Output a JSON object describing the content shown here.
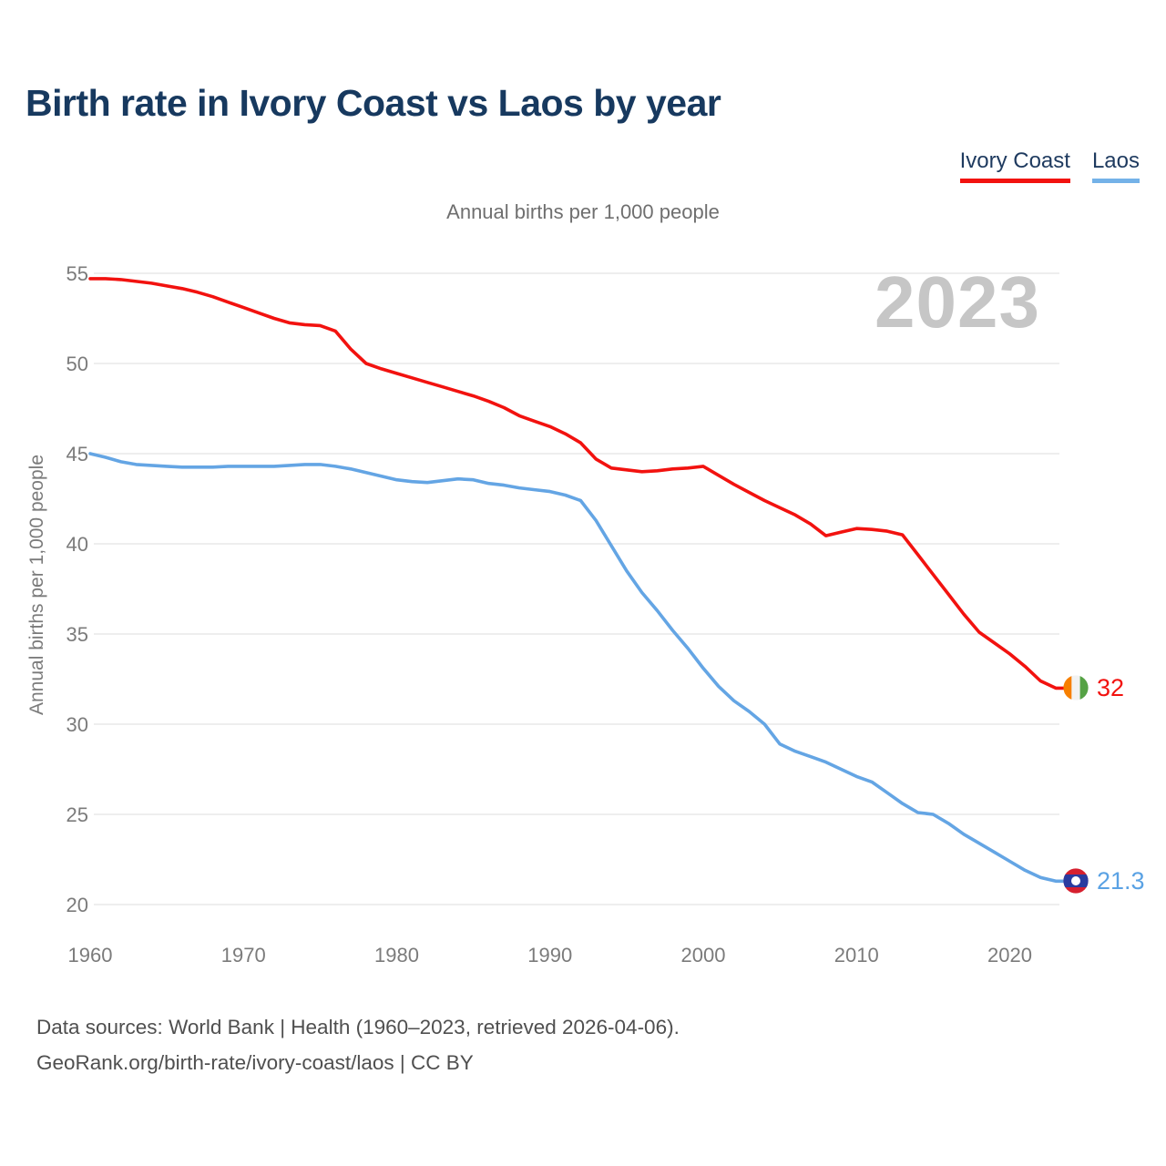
{
  "header": {
    "title": "Birth rate in Ivory Coast vs Laos by year",
    "legend": [
      {
        "label": "Ivory Coast",
        "color": "#f2120f"
      },
      {
        "label": "Laos",
        "color": "#74b2e8"
      }
    ]
  },
  "chart_data": {
    "type": "line",
    "title": "Birth rate in Ivory Coast vs Laos by year",
    "subtitle": "Annual births per 1,000 people",
    "ylabel": "Annual births per 1,000 people",
    "watermark": "2023",
    "grid": true,
    "grid_color": "#e9e9e9",
    "legend_position": "top-right",
    "x_start": 1960,
    "x_end": 2023,
    "x_ticks": [
      1960,
      1970,
      1980,
      1990,
      2000,
      2010,
      2020
    ],
    "y_ticks": [
      55,
      50,
      45,
      40,
      35,
      30,
      25,
      20
    ],
    "ylim": [
      20,
      55
    ],
    "series": [
      {
        "name": "Ivory Coast",
        "color": "#f2120f",
        "end_label": "32",
        "flag_icon": "ivory-coast-flag",
        "flag_colors": [
          "#f77f00",
          "#f2f2f2",
          "#55a245"
        ],
        "values": [
          54.7,
          54.7,
          54.65,
          54.55,
          54.45,
          54.3,
          54.15,
          53.95,
          53.7,
          53.4,
          53.1,
          52.8,
          52.5,
          52.25,
          52.15,
          52.1,
          51.8,
          50.8,
          50.0,
          49.7,
          49.45,
          49.2,
          48.95,
          48.7,
          48.45,
          48.2,
          47.9,
          47.55,
          47.1,
          46.8,
          46.5,
          46.1,
          45.6,
          44.7,
          44.2,
          44.1,
          44.0,
          44.05,
          44.15,
          44.2,
          44.3,
          43.8,
          43.3,
          42.85,
          42.4,
          42.0,
          41.6,
          41.1,
          40.45,
          40.65,
          40.85,
          40.8,
          40.7,
          40.5,
          39.4,
          38.3,
          37.2,
          36.1,
          35.1,
          34.5,
          33.9,
          33.2,
          32.4,
          32.0
        ]
      },
      {
        "name": "Laos",
        "color": "#64a5e4",
        "end_label": "21.3",
        "flag_icon": "laos-flag",
        "flag_colors": [
          "#d6202f",
          "#2a3b9f",
          "#ffffff"
        ],
        "values": [
          45.0,
          44.8,
          44.55,
          44.4,
          44.35,
          44.3,
          44.25,
          44.25,
          44.25,
          44.3,
          44.3,
          44.3,
          44.3,
          44.35,
          44.4,
          44.4,
          44.3,
          44.15,
          43.95,
          43.75,
          43.55,
          43.45,
          43.4,
          43.5,
          43.6,
          43.55,
          43.35,
          43.25,
          43.1,
          43.0,
          42.9,
          42.7,
          42.4,
          41.3,
          39.9,
          38.5,
          37.3,
          36.3,
          35.2,
          34.2,
          33.1,
          32.1,
          31.3,
          30.7,
          30.0,
          28.9,
          28.5,
          28.2,
          27.9,
          27.5,
          27.1,
          26.8,
          26.2,
          25.6,
          25.1,
          25.0,
          24.5,
          23.9,
          23.4,
          22.9,
          22.4,
          21.9,
          21.5,
          21.3
        ]
      }
    ]
  },
  "footer": {
    "line1": "Data sources: World Bank | Health (1960–2023, retrieved 2026-04-06).",
    "line2": "GeoRank.org/birth-rate/ivory-coast/laos | CC BY"
  }
}
